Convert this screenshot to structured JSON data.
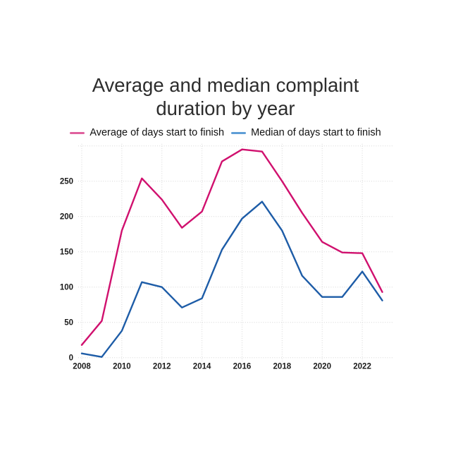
{
  "title": "Average and median complaint duration by year",
  "legend": [
    {
      "label": "Average of days start to finish",
      "swatch_color": "#e0619e"
    },
    {
      "label": "Median of days start to finish",
      "swatch_color": "#5f9ed6"
    }
  ],
  "colors": {
    "average_line": "#d0106e",
    "median_line": "#1d5ca7",
    "grid": "#d7d7d7",
    "tick_text": "#1a1a1a",
    "title_text": "#2d2d2d",
    "background": "#ffffff"
  },
  "chart_data": {
    "type": "line",
    "x": [
      2008,
      2009,
      2010,
      2011,
      2012,
      2013,
      2014,
      2015,
      2016,
      2017,
      2018,
      2019,
      2020,
      2021,
      2022,
      2023
    ],
    "series": [
      {
        "name": "Average of days start to finish",
        "color": "#d0106e",
        "values": [
          18,
          52,
          180,
          254,
          224,
          184,
          207,
          278,
          295,
          292,
          250,
          205,
          164,
          149,
          148,
          93
        ]
      },
      {
        "name": "Median of days start to finish",
        "color": "#1d5ca7",
        "values": [
          6,
          1,
          38,
          107,
          100,
          71,
          84,
          153,
          197,
          221,
          180,
          116,
          86,
          86,
          122,
          81
        ]
      }
    ],
    "xticks": [
      2008,
      2010,
      2012,
      2014,
      2016,
      2018,
      2020,
      2022
    ],
    "yticks": [
      0,
      50,
      100,
      150,
      200,
      250
    ],
    "ylim": [
      0,
      300
    ],
    "grid": "dotted",
    "legend_position": "top"
  }
}
